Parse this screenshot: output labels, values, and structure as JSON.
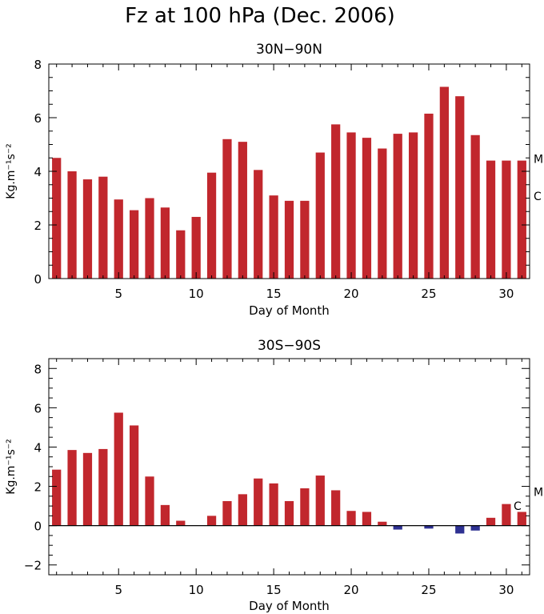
{
  "figure_title": "Fz at 100 hPa (Dec. 2006)",
  "colors": {
    "positive": "#c1272d",
    "negative": "#2e3192",
    "axis": "#000000"
  },
  "chart_data": [
    {
      "type": "bar",
      "title": "30N−90N",
      "xlabel": "Day of Month",
      "ylabel": "Kg.m⁻¹s⁻²",
      "xlim": [
        0.5,
        31.5
      ],
      "ylim": [
        0,
        8
      ],
      "xticks": [
        "5",
        "10",
        "15",
        "20",
        "25",
        "30"
      ],
      "yticks": [
        "0",
        "2",
        "4",
        "6",
        "8"
      ],
      "x": [
        1,
        2,
        3,
        4,
        5,
        6,
        7,
        8,
        9,
        10,
        11,
        12,
        13,
        14,
        15,
        16,
        17,
        18,
        19,
        20,
        21,
        22,
        23,
        24,
        25,
        26,
        27,
        28,
        29,
        30,
        31
      ],
      "values": [
        4.5,
        4.0,
        3.7,
        3.8,
        2.95,
        2.55,
        3.0,
        2.65,
        1.8,
        2.3,
        3.95,
        5.2,
        5.1,
        4.05,
        3.1,
        2.9,
        2.9,
        4.7,
        5.75,
        5.45,
        5.25,
        4.85,
        5.4,
        5.45,
        6.15,
        7.15,
        6.8,
        5.35,
        4.4,
        4.4,
        4.4
      ],
      "markers": [
        {
          "label": "M",
          "y": 4.5
        },
        {
          "label": "C",
          "y": 3.1
        }
      ],
      "zero_line": false
    },
    {
      "type": "bar",
      "title": "30S−90S",
      "xlabel": "Day of Month",
      "ylabel": "Kg.m⁻¹s⁻²",
      "xlim": [
        0.5,
        31.5
      ],
      "ylim": [
        -2.5,
        8.5
      ],
      "xticks": [
        "5",
        "10",
        "15",
        "20",
        "25",
        "30"
      ],
      "yticks": [
        "−2",
        "0",
        "2",
        "4",
        "6",
        "8"
      ],
      "x": [
        1,
        2,
        3,
        4,
        5,
        6,
        7,
        8,
        9,
        10,
        11,
        12,
        13,
        14,
        15,
        16,
        17,
        18,
        19,
        20,
        21,
        22,
        23,
        24,
        25,
        26,
        27,
        28,
        29,
        30,
        31
      ],
      "values": [
        2.85,
        3.85,
        3.7,
        3.9,
        5.75,
        5.1,
        2.5,
        1.05,
        0.25,
        0.0,
        0.5,
        1.25,
        1.6,
        2.4,
        2.15,
        1.25,
        1.9,
        2.55,
        1.8,
        0.75,
        0.7,
        0.2,
        -0.2,
        0.0,
        -0.15,
        0.0,
        -0.4,
        -0.25,
        0.4,
        1.1,
        0.7
      ],
      "markers": [
        {
          "label": "M",
          "y": 1.75
        },
        {
          "label": "C",
          "y": 1.05
        }
      ],
      "zero_line": true
    }
  ]
}
